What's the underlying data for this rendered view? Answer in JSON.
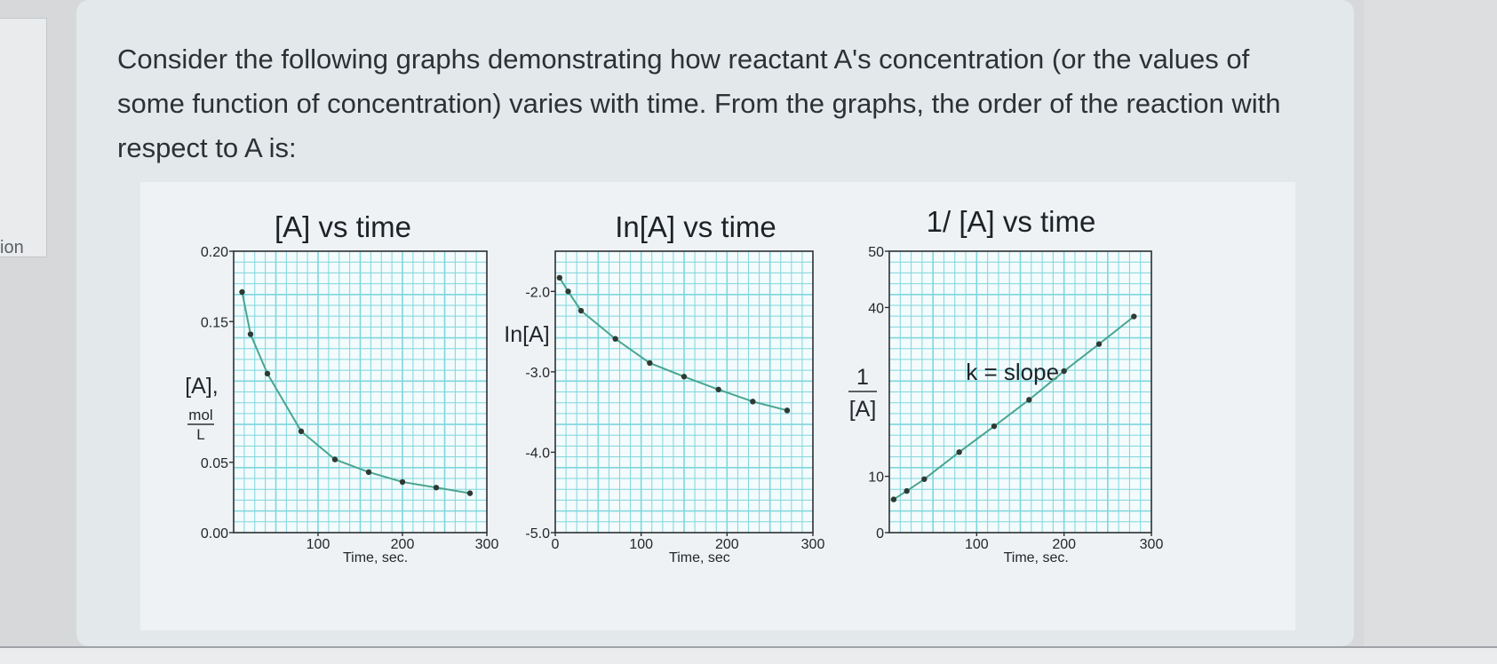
{
  "sidebar": {
    "tab_label": "ion"
  },
  "question": {
    "text": "Consider the following graphs demonstrating how reactant A's concentration (or the values of some function of concentration) varies with time. From the graphs, the order of the reaction with respect to A is:"
  },
  "colors": {
    "grid": "#7fd6dd",
    "curve": "#4aa58f",
    "point": "#2d3a34",
    "frame": "#2a2f33"
  },
  "chart_data": [
    {
      "type": "line",
      "title": "[A] vs time",
      "ylabel": "[A],",
      "ylabel_unit_num": "mol",
      "ylabel_unit_den": "L",
      "xlabel": "Time, sec.",
      "xlim": [
        0,
        300
      ],
      "ylim": [
        0.0,
        0.2
      ],
      "xticks": [
        100,
        200,
        300
      ],
      "xtick_labels": [
        "100",
        "200",
        "300"
      ],
      "yticks": [
        0.0,
        0.05,
        0.15,
        0.2
      ],
      "ytick_labels": [
        "0.00",
        "0.05",
        "0.15",
        "0.20"
      ],
      "grid": true,
      "series": [
        {
          "x": [
            10,
            20,
            40,
            80,
            120,
            160,
            200,
            240,
            280
          ],
          "y": [
            0.171,
            0.141,
            0.113,
            0.072,
            0.052,
            0.043,
            0.036,
            0.032,
            0.028
          ]
        }
      ]
    },
    {
      "type": "line",
      "title": "In[A] vs time",
      "ylabel": "In[A]",
      "xlabel": "Time, sec",
      "xlim": [
        0,
        300
      ],
      "ylim": [
        -5.0,
        -1.5
      ],
      "xticks": [
        0,
        100,
        200,
        300
      ],
      "xtick_labels": [
        "0",
        "100",
        "200",
        "300"
      ],
      "yticks": [
        -5.0,
        -4.0,
        -3.0,
        -2.0
      ],
      "ytick_labels": [
        "-5.0",
        "-4.0",
        "-3.0",
        "-2.0"
      ],
      "grid": true,
      "series": [
        {
          "x": [
            5,
            15,
            30,
            70,
            110,
            150,
            190,
            230,
            270
          ],
          "y": [
            -1.83,
            -2.0,
            -2.24,
            -2.59,
            -2.89,
            -3.06,
            -3.22,
            -3.37,
            -3.48
          ]
        }
      ]
    },
    {
      "type": "line",
      "title": "1/ [A] vs time",
      "ylabel_num": "1",
      "ylabel_den": "[A]",
      "xlabel": "Time, sec.",
      "annotation": "k = slope",
      "xlim": [
        0,
        300
      ],
      "ylim": [
        0,
        50
      ],
      "xticks": [
        100,
        200,
        300
      ],
      "xtick_labels": [
        "100",
        "200",
        "300"
      ],
      "yticks": [
        0,
        10,
        40,
        50
      ],
      "ytick_labels": [
        "0",
        "10",
        "40",
        "50"
      ],
      "grid": true,
      "series": [
        {
          "x": [
            5,
            20,
            40,
            80,
            120,
            160,
            200,
            240,
            280
          ],
          "y": [
            5.9,
            7.4,
            9.5,
            14.3,
            18.9,
            23.6,
            28.7,
            33.5,
            38.4
          ]
        }
      ]
    }
  ]
}
